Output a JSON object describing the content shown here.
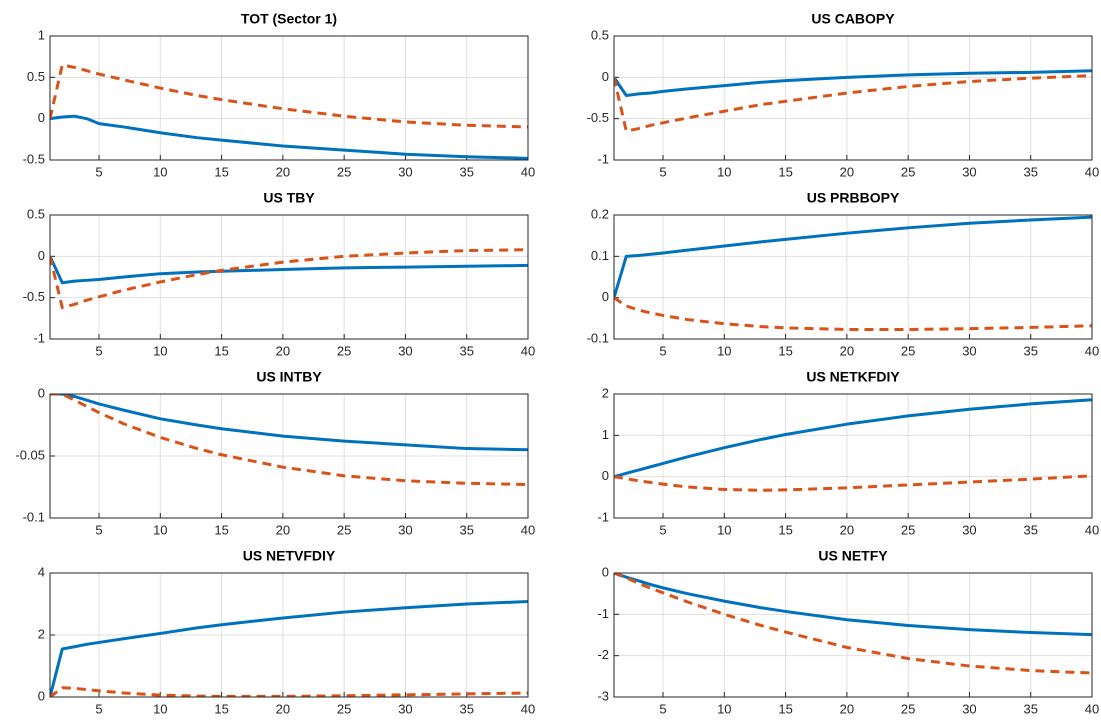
{
  "chart_data": [
    {
      "type": "line",
      "title": "TOT (Sector 1)",
      "x": [
        1,
        2,
        3,
        4,
        5,
        7,
        10,
        13,
        15,
        20,
        25,
        30,
        35,
        40
      ],
      "xlim": [
        1,
        40
      ],
      "xticks": [
        5,
        10,
        15,
        20,
        25,
        30,
        35,
        40
      ],
      "ylim": [
        -0.5,
        1
      ],
      "yticks": [
        -0.5,
        0,
        0.5,
        1
      ],
      "grid": true,
      "series": [
        {
          "color": "#0072BD",
          "line_style": "solid",
          "values": [
            0,
            0.02,
            0.03,
            0.0,
            -0.06,
            -0.1,
            -0.17,
            -0.23,
            -0.26,
            -0.33,
            -0.38,
            -0.43,
            -0.46,
            -0.48
          ]
        },
        {
          "color": "#D95319",
          "line_style": "dashed",
          "values": [
            0,
            0.65,
            0.62,
            0.58,
            0.54,
            0.47,
            0.37,
            0.28,
            0.23,
            0.12,
            0.03,
            -0.04,
            -0.08,
            -0.1
          ]
        }
      ]
    },
    {
      "type": "line",
      "title": "US CABOPY",
      "x": [
        1,
        2,
        3,
        4,
        5,
        7,
        10,
        13,
        15,
        20,
        25,
        30,
        35,
        40
      ],
      "xlim": [
        1,
        40
      ],
      "xticks": [
        5,
        10,
        15,
        20,
        25,
        30,
        35,
        40
      ],
      "ylim": [
        -1,
        0.5
      ],
      "yticks": [
        -1,
        -0.5,
        0,
        0.5
      ],
      "grid": true,
      "series": [
        {
          "color": "#0072BD",
          "line_style": "solid",
          "values": [
            0,
            -0.22,
            -0.2,
            -0.19,
            -0.17,
            -0.14,
            -0.1,
            -0.06,
            -0.04,
            0,
            0.03,
            0.05,
            0.06,
            0.08
          ]
        },
        {
          "color": "#D95319",
          "line_style": "dashed",
          "values": [
            0,
            -0.65,
            -0.62,
            -0.58,
            -0.55,
            -0.49,
            -0.41,
            -0.33,
            -0.29,
            -0.19,
            -0.11,
            -0.05,
            -0.01,
            0.02
          ]
        }
      ]
    },
    {
      "type": "line",
      "title": "US TBY",
      "x": [
        1,
        2,
        3,
        4,
        5,
        7,
        10,
        13,
        15,
        20,
        25,
        30,
        35,
        40
      ],
      "xlim": [
        1,
        40
      ],
      "xticks": [
        5,
        10,
        15,
        20,
        25,
        30,
        35,
        40
      ],
      "ylim": [
        -1,
        0.5
      ],
      "yticks": [
        -1,
        -0.5,
        0,
        0.5
      ],
      "grid": true,
      "series": [
        {
          "color": "#0072BD",
          "line_style": "solid",
          "values": [
            0,
            -0.32,
            -0.3,
            -0.29,
            -0.28,
            -0.25,
            -0.21,
            -0.19,
            -0.18,
            -0.16,
            -0.14,
            -0.13,
            -0.12,
            -0.11
          ]
        },
        {
          "color": "#D95319",
          "line_style": "dashed",
          "values": [
            0,
            -0.62,
            -0.58,
            -0.53,
            -0.49,
            -0.41,
            -0.31,
            -0.22,
            -0.17,
            -0.07,
            0,
            0.04,
            0.07,
            0.08
          ]
        }
      ]
    },
    {
      "type": "line",
      "title": "US PRBBOPY",
      "x": [
        1,
        2,
        3,
        4,
        5,
        7,
        10,
        13,
        15,
        20,
        25,
        30,
        35,
        40
      ],
      "xlim": [
        1,
        40
      ],
      "xticks": [
        5,
        10,
        15,
        20,
        25,
        30,
        35,
        40
      ],
      "ylim": [
        -0.1,
        0.2
      ],
      "yticks": [
        -0.1,
        0,
        0.1,
        0.2
      ],
      "grid": true,
      "series": [
        {
          "color": "#0072BD",
          "line_style": "solid",
          "values": [
            0,
            0.1,
            0.102,
            0.105,
            0.108,
            0.115,
            0.125,
            0.135,
            0.141,
            0.156,
            0.169,
            0.18,
            0.188,
            0.195
          ]
        },
        {
          "color": "#D95319",
          "line_style": "dashed",
          "values": [
            0,
            -0.02,
            -0.03,
            -0.037,
            -0.043,
            -0.053,
            -0.063,
            -0.07,
            -0.073,
            -0.077,
            -0.077,
            -0.075,
            -0.072,
            -0.068
          ]
        }
      ]
    },
    {
      "type": "line",
      "title": "US INTBY",
      "x": [
        1,
        2,
        3,
        4,
        5,
        7,
        10,
        13,
        15,
        20,
        25,
        30,
        35,
        40
      ],
      "xlim": [
        1,
        40
      ],
      "xticks": [
        5,
        10,
        15,
        20,
        25,
        30,
        35,
        40
      ],
      "ylim": [
        -0.1,
        0
      ],
      "yticks": [
        -0.1,
        -0.05,
        0
      ],
      "grid": true,
      "series": [
        {
          "color": "#0072BD",
          "line_style": "solid",
          "values": [
            0,
            0,
            -0.002,
            -0.005,
            -0.008,
            -0.013,
            -0.02,
            -0.025,
            -0.028,
            -0.034,
            -0.038,
            -0.041,
            -0.044,
            -0.045
          ]
        },
        {
          "color": "#D95319",
          "line_style": "dashed",
          "values": [
            0,
            0,
            -0.005,
            -0.01,
            -0.015,
            -0.024,
            -0.035,
            -0.044,
            -0.049,
            -0.059,
            -0.066,
            -0.07,
            -0.072,
            -0.073
          ]
        }
      ]
    },
    {
      "type": "line",
      "title": "US NETKFDIY",
      "x": [
        1,
        2,
        3,
        4,
        5,
        7,
        10,
        13,
        15,
        20,
        25,
        30,
        35,
        40
      ],
      "xlim": [
        1,
        40
      ],
      "xticks": [
        5,
        10,
        15,
        20,
        25,
        30,
        35,
        40
      ],
      "ylim": [
        -1,
        2
      ],
      "yticks": [
        -1,
        0,
        1,
        2
      ],
      "grid": true,
      "series": [
        {
          "color": "#0072BD",
          "line_style": "solid",
          "values": [
            0,
            0.08,
            0.16,
            0.24,
            0.32,
            0.48,
            0.7,
            0.9,
            1.02,
            1.27,
            1.47,
            1.63,
            1.76,
            1.86
          ]
        },
        {
          "color": "#D95319",
          "line_style": "dashed",
          "values": [
            0,
            -0.05,
            -0.1,
            -0.14,
            -0.18,
            -0.25,
            -0.31,
            -0.33,
            -0.32,
            -0.27,
            -0.2,
            -0.13,
            -0.06,
            0.02
          ]
        }
      ]
    },
    {
      "type": "line",
      "title": "US NETVFDIY",
      "x": [
        1,
        2,
        3,
        4,
        5,
        7,
        10,
        13,
        15,
        20,
        25,
        30,
        35,
        40
      ],
      "xlim": [
        1,
        40
      ],
      "xticks": [
        5,
        10,
        15,
        20,
        25,
        30,
        35,
        40
      ],
      "ylim": [
        0,
        4
      ],
      "yticks": [
        0,
        2,
        4
      ],
      "grid": true,
      "series": [
        {
          "color": "#0072BD",
          "line_style": "solid",
          "values": [
            0,
            1.55,
            1.62,
            1.7,
            1.76,
            1.88,
            2.05,
            2.23,
            2.33,
            2.55,
            2.74,
            2.88,
            3.0,
            3.08
          ]
        },
        {
          "color": "#D95319",
          "line_style": "dashed",
          "values": [
            0,
            0.3,
            0.28,
            0.24,
            0.2,
            0.13,
            0.06,
            0.03,
            0.02,
            0.02,
            0.04,
            0.07,
            0.1,
            0.13
          ]
        }
      ]
    },
    {
      "type": "line",
      "title": "US NETFY",
      "x": [
        1,
        2,
        3,
        4,
        5,
        7,
        10,
        13,
        15,
        20,
        25,
        30,
        35,
        40
      ],
      "xlim": [
        1,
        40
      ],
      "xticks": [
        5,
        10,
        15,
        20,
        25,
        30,
        35,
        40
      ],
      "ylim": [
        -3,
        0
      ],
      "yticks": [
        -3,
        -2,
        -1,
        0
      ],
      "grid": true,
      "series": [
        {
          "color": "#0072BD",
          "line_style": "solid",
          "values": [
            0,
            -0.1,
            -0.19,
            -0.28,
            -0.36,
            -0.5,
            -0.68,
            -0.84,
            -0.93,
            -1.13,
            -1.27,
            -1.37,
            -1.44,
            -1.49
          ]
        },
        {
          "color": "#D95319",
          "line_style": "dashed",
          "values": [
            0,
            -0.12,
            -0.25,
            -0.37,
            -0.48,
            -0.7,
            -1.0,
            -1.27,
            -1.43,
            -1.8,
            -2.07,
            -2.25,
            -2.36,
            -2.42
          ]
        }
      ]
    }
  ]
}
